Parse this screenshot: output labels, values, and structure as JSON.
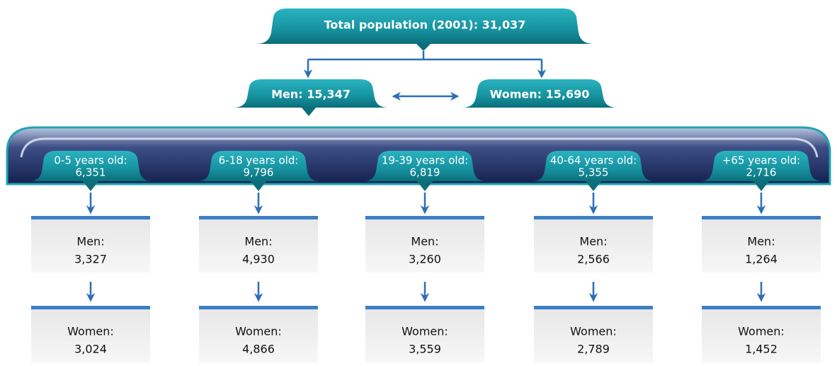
{
  "title": "Total population (2001): 31,037",
  "men": "Men: 15,347",
  "women": "Women: 15,690",
  "groups": [
    {
      "label": "0-5 years old:",
      "value": "6,351",
      "men_label": "Men:",
      "men": "3,327",
      "women_label": "Women:",
      "women": "3,024"
    },
    {
      "label": "6-18 years old:",
      "value": "9,796",
      "men_label": "Men:",
      "men": "4,930",
      "women_label": "Women:",
      "women": "4,866"
    },
    {
      "label": "19-39 years old:",
      "value": "6,819",
      "men_label": "Men:",
      "men": "3,260",
      "women_label": "Women:",
      "women": "3,559"
    },
    {
      "label": "40-64 years old:",
      "value": "5,355",
      "men_label": "Men:",
      "men": "2,566",
      "women_label": "Women:",
      "women": "2,789"
    },
    {
      "label": "+65 years old:",
      "value": "2,716",
      "men_label": "Men:",
      "men": "1,264",
      "women_label": "Women:",
      "women": "1,452"
    }
  ]
}
